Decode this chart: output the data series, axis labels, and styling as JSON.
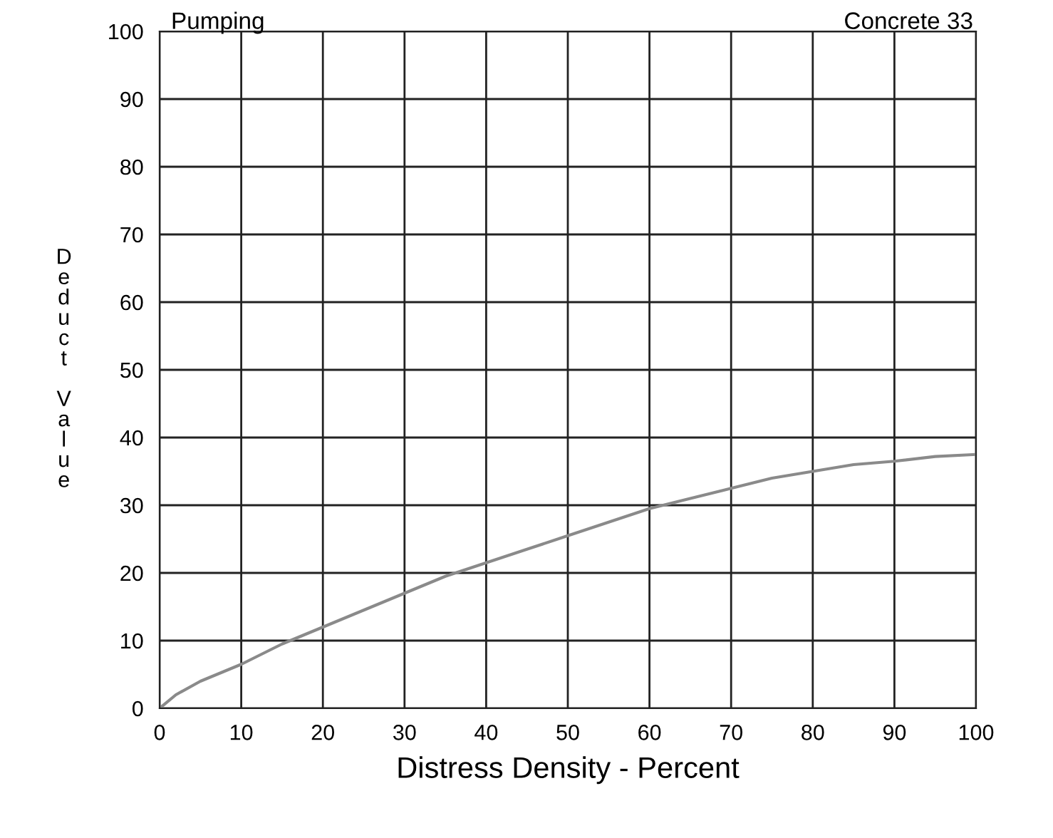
{
  "chart_data": {
    "type": "line",
    "title": "Pumping",
    "subtitle": "Concrete 33",
    "xlabel": "Distress Density - Percent",
    "ylabel": "Deduct Value",
    "x": [
      0,
      2,
      5,
      10,
      15,
      20,
      25,
      30,
      35,
      40,
      45,
      50,
      55,
      60,
      65,
      70,
      75,
      80,
      85,
      90,
      95,
      100
    ],
    "series": [
      {
        "color": "#8a8a8a",
        "values": [
          0,
          2,
          4,
          6.5,
          9.5,
          12,
          14.5,
          17,
          19.5,
          21.5,
          23.5,
          25.5,
          27.5,
          29.5,
          31,
          32.5,
          34,
          35,
          36,
          36.5,
          37.2,
          37.5
        ]
      }
    ],
    "xlim": [
      0,
      100
    ],
    "ylim": [
      0,
      100
    ],
    "xticks": [
      0,
      10,
      20,
      30,
      40,
      50,
      60,
      70,
      80,
      90,
      100
    ],
    "yticks": [
      0,
      10,
      20,
      30,
      40,
      50,
      60,
      70,
      80,
      90,
      100
    ],
    "grid": true,
    "marker": "none",
    "line_style": "solid"
  }
}
